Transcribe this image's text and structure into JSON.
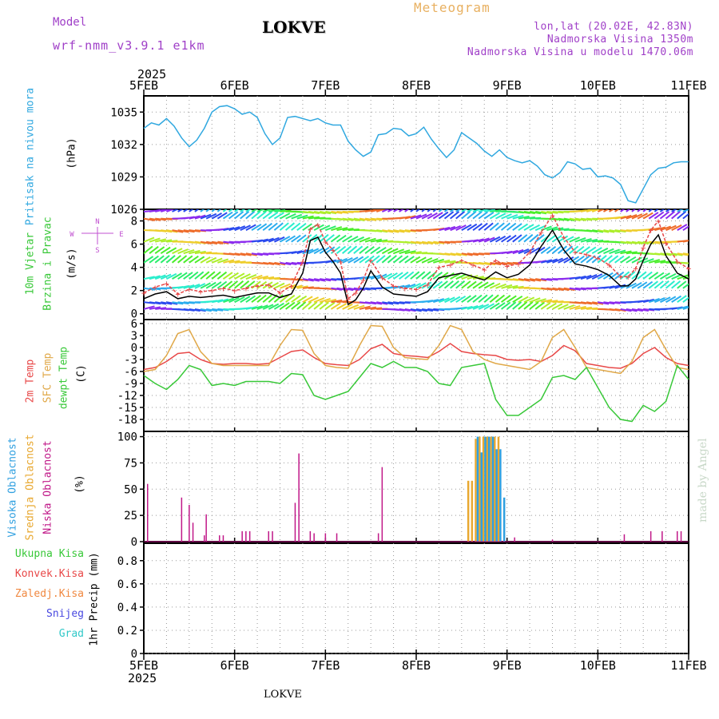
{
  "header": {
    "station": "LOKVE",
    "model_label": "Model",
    "model_name": "wrf-nmm_v3.9.1 e1km",
    "product": "Meteogram",
    "coords": "lon,lat (20.02E, 42.83N)",
    "elevation": "Nadmorska Visina 1350m",
    "model_elevation": "Nadmorska Visina u modelu 1470.06m",
    "year": "2025",
    "footer_station": "LOKVE",
    "credit": "made by Angel"
  },
  "axis_labels": {
    "pressure_title": "Pritisak na nivou mora",
    "pressure_unit": "(hPa)",
    "wind_title_1": "10m Vjetar",
    "wind_title_2": "Brzina i Pravac",
    "wind_unit": "(m/s)",
    "temp_2m": "2m Temp",
    "temp_sfc": "SFC Temp",
    "temp_dewpt": "dewpt Temp",
    "temp_unit": "(C)",
    "cloud_high": "Visoka Oblacnost",
    "cloud_mid": "Srednja Oblacnost",
    "cloud_low": "Niska Oblacnost",
    "cloud_unit": "(%)",
    "precip_total": "Ukupna Kisa",
    "precip_conv": "Konvek.Kisa",
    "precip_frz": "Zaledj.Kisa",
    "precip_snow": "Snijeg",
    "precip_hail": "Grad",
    "precip_unit": "1hr Precip (mm)"
  },
  "colors": {
    "pressure": "#30a8e0",
    "temp_2m": "#e84848",
    "temp_sfc": "#e0a848",
    "dewpt": "#38c838",
    "cloud_high": "#30a0e0",
    "cloud_mid": "#e8a830",
    "cloud_low": "#c01888",
    "wind_speed": "#000000",
    "wind_gust": "#e84848"
  },
  "chart_data": [
    {
      "type": "line",
      "panel": "pressure",
      "title": "Pritisak na nivou mora",
      "ylabel": "(hPa)",
      "x_ticks": [
        "5FEB",
        "6FEB",
        "7FEB",
        "8FEB",
        "9FEB",
        "10FEB",
        "11FEB"
      ],
      "x_range_hours": [
        0,
        144
      ],
      "ylim": [
        1026,
        1036.5
      ],
      "yticks": [
        "1026",
        "1029",
        "1032",
        "1035"
      ],
      "series": [
        {
          "color": "#30a8e0",
          "x": [
            0,
            2,
            4,
            6,
            8,
            10,
            12,
            14,
            16,
            18,
            20,
            22,
            24,
            26,
            28,
            30,
            32,
            34,
            36,
            38,
            40,
            42,
            44,
            46,
            48,
            50,
            52,
            54,
            56,
            58,
            60,
            62,
            64,
            66,
            68,
            70,
            72,
            74,
            76,
            78,
            80,
            82,
            84,
            86,
            88,
            90,
            92,
            94,
            96,
            98,
            100,
            102,
            104,
            106,
            108,
            110,
            112,
            114,
            116,
            118,
            120,
            122,
            124,
            126,
            128,
            130,
            132,
            134,
            136,
            138,
            140,
            142,
            144
          ],
          "y": [
            1033.5,
            1034.0,
            1033.8,
            1034.4,
            1033.7,
            1032.6,
            1031.8,
            1032.4,
            1033.5,
            1035.0,
            1035.5,
            1035.6,
            1035.3,
            1034.8,
            1035.0,
            1034.5,
            1033.0,
            1032.0,
            1032.6,
            1034.5,
            1034.6,
            1034.4,
            1034.2,
            1034.4,
            1034.0,
            1033.8,
            1033.8,
            1032.3,
            1031.5,
            1030.9,
            1031.3,
            1032.9,
            1033.0,
            1033.5,
            1033.4,
            1032.8,
            1033.0,
            1033.6,
            1032.5,
            1031.6,
            1030.8,
            1031.5,
            1033.1,
            1032.6,
            1032.1,
            1031.4,
            1030.9,
            1031.5,
            1030.8,
            1030.5,
            1030.3,
            1030.5,
            1030.0,
            1029.2,
            1028.9,
            1029.4,
            1030.4,
            1030.2,
            1029.7,
            1029.8,
            1029.0,
            1029.1,
            1028.9,
            1028.3,
            1026.8,
            1026.6,
            1027.9,
            1029.2,
            1029.8,
            1029.9,
            1030.3,
            1030.4,
            1030.4
          ]
        }
      ]
    },
    {
      "type": "line",
      "panel": "wind",
      "title": "10m Vjetar Brzina i Pravac",
      "ylabel": "(m/s)",
      "ylim": [
        -0.5,
        9
      ],
      "yticks": [
        "0",
        "2",
        "4",
        "6",
        "8"
      ],
      "direction_legend": [
        "N",
        "E",
        "S",
        "W"
      ],
      "series": [
        {
          "name": "speed",
          "color": "#000000",
          "x": [
            0,
            3,
            6,
            9,
            12,
            15,
            18,
            21,
            24,
            27,
            30,
            33,
            36,
            39,
            42,
            44,
            46,
            48,
            50,
            52,
            54,
            56,
            58,
            60,
            63,
            66,
            69,
            72,
            75,
            78,
            81,
            84,
            87,
            90,
            93,
            96,
            99,
            102,
            105,
            108,
            111,
            114,
            117,
            120,
            123,
            126,
            128,
            130,
            132,
            134,
            136,
            138,
            141,
            144
          ],
          "y": [
            1.3,
            1.7,
            1.9,
            1.3,
            1.5,
            1.4,
            1.5,
            1.6,
            1.4,
            1.6,
            1.8,
            1.8,
            1.4,
            1.7,
            3.5,
            6.3,
            6.6,
            5.3,
            4.5,
            3.5,
            0.8,
            1.2,
            2.2,
            3.7,
            2.3,
            1.7,
            1.6,
            1.5,
            1.9,
            3.1,
            3.3,
            3.5,
            3.2,
            2.9,
            3.6,
            3.1,
            3.4,
            4.2,
            5.8,
            7.2,
            5.5,
            4.3,
            4.1,
            3.8,
            3.3,
            2.4,
            2.4,
            3.0,
            4.6,
            6.0,
            6.8,
            5.0,
            3.5,
            3.0
          ]
        },
        {
          "name": "gust",
          "color": "#e84848",
          "x": [
            0,
            3,
            6,
            9,
            12,
            15,
            18,
            21,
            24,
            27,
            30,
            33,
            36,
            39,
            42,
            44,
            46,
            48,
            50,
            52,
            54,
            56,
            58,
            60,
            63,
            66,
            69,
            72,
            75,
            78,
            81,
            84,
            87,
            90,
            93,
            96,
            99,
            102,
            105,
            108,
            111,
            114,
            117,
            120,
            123,
            126,
            128,
            130,
            132,
            134,
            136,
            138,
            141,
            144
          ],
          "y": [
            1.8,
            2.3,
            2.6,
            1.7,
            2.1,
            1.9,
            2.0,
            2.2,
            2.0,
            2.2,
            2.4,
            2.5,
            1.8,
            2.4,
            4.5,
            7.3,
            7.7,
            6.2,
            5.5,
            4.5,
            1.3,
            1.8,
            2.9,
            4.6,
            3.1,
            2.4,
            2.2,
            2.1,
            2.5,
            4.0,
            4.2,
            4.6,
            4.2,
            3.8,
            4.6,
            4.1,
            4.3,
            5.3,
            7.0,
            8.5,
            6.6,
            5.3,
            5.1,
            4.8,
            4.2,
            3.2,
            3.2,
            3.9,
            5.7,
            7.2,
            8.0,
            6.1,
            4.5,
            3.9
          ]
        }
      ]
    },
    {
      "type": "line",
      "panel": "temperature",
      "title": "2m Temp / SFC Temp / dewpt Temp",
      "ylabel": "(C)",
      "ylim": [
        -21,
        7
      ],
      "yticks": [
        "-18",
        "-15",
        "-12",
        "-9",
        "-6",
        "-3",
        "0",
        "3",
        "6"
      ],
      "series": [
        {
          "name": "2m Temp",
          "color": "#e84848",
          "x": [
            0,
            3,
            6,
            9,
            12,
            15,
            18,
            21,
            24,
            27,
            30,
            33,
            36,
            39,
            42,
            45,
            48,
            51,
            54,
            57,
            60,
            63,
            66,
            69,
            72,
            75,
            78,
            81,
            84,
            87,
            90,
            93,
            96,
            99,
            102,
            105,
            108,
            111,
            114,
            117,
            120,
            123,
            126,
            129,
            132,
            135,
            138,
            141,
            144
          ],
          "y": [
            -5.5,
            -5.0,
            -3.5,
            -1.5,
            -1.2,
            -3.0,
            -4.0,
            -4.2,
            -4.0,
            -4.0,
            -4.2,
            -4.0,
            -2.5,
            -1.0,
            -0.6,
            -2.5,
            -4.0,
            -4.3,
            -4.5,
            -3.0,
            -0.3,
            0.8,
            -1.5,
            -2.0,
            -2.2,
            -2.5,
            -1.0,
            1.0,
            -1.0,
            -1.5,
            -1.8,
            -2.0,
            -3.0,
            -3.2,
            -3.0,
            -3.5,
            -2.0,
            0.5,
            -0.8,
            -4.0,
            -4.5,
            -5.0,
            -5.2,
            -4.0,
            -1.5,
            0.0,
            -2.5,
            -4.0,
            -4.5
          ]
        },
        {
          "name": "SFC Temp",
          "color": "#e0a848",
          "x": [
            0,
            3,
            6,
            9,
            12,
            15,
            18,
            21,
            24,
            27,
            30,
            33,
            36,
            39,
            42,
            45,
            48,
            51,
            54,
            57,
            60,
            63,
            66,
            69,
            72,
            75,
            78,
            81,
            84,
            87,
            90,
            93,
            96,
            99,
            102,
            105,
            108,
            111,
            114,
            117,
            120,
            123,
            126,
            129,
            132,
            135,
            138,
            141,
            144
          ],
          "y": [
            -6.0,
            -5.5,
            -2.0,
            3.5,
            4.5,
            -1.0,
            -4.0,
            -4.5,
            -4.5,
            -4.5,
            -4.5,
            -4.5,
            0.5,
            4.5,
            4.3,
            -1.5,
            -4.5,
            -5.0,
            -5.2,
            0.5,
            5.5,
            5.3,
            0.0,
            -2.5,
            -2.8,
            -3.0,
            0.5,
            5.5,
            4.5,
            -1.0,
            -3.0,
            -4.0,
            -4.5,
            -5.0,
            -5.5,
            -3.5,
            2.5,
            4.5,
            0.0,
            -5.0,
            -5.5,
            -6.0,
            -6.5,
            -3.5,
            2.5,
            4.5,
            -0.5,
            -5.0,
            -5.5
          ]
        },
        {
          "name": "dewpt Temp",
          "color": "#38c838",
          "x": [
            0,
            3,
            6,
            9,
            12,
            15,
            18,
            21,
            24,
            27,
            30,
            33,
            36,
            39,
            42,
            45,
            48,
            51,
            54,
            57,
            60,
            63,
            66,
            69,
            72,
            75,
            78,
            81,
            84,
            87,
            90,
            93,
            96,
            99,
            102,
            105,
            108,
            111,
            114,
            117,
            120,
            123,
            126,
            129,
            132,
            135,
            138,
            141,
            144
          ],
          "y": [
            -7.0,
            -9.0,
            -10.5,
            -8.0,
            -4.5,
            -5.5,
            -9.5,
            -9.0,
            -9.5,
            -8.5,
            -8.5,
            -8.5,
            -9.0,
            -6.5,
            -6.8,
            -12.0,
            -13.0,
            -12.0,
            -11.0,
            -7.5,
            -4.0,
            -5.0,
            -3.5,
            -5.0,
            -5.0,
            -6.0,
            -9.0,
            -9.5,
            -5.0,
            -4.5,
            -4.0,
            -13.0,
            -17.0,
            -17.0,
            -15.0,
            -13.0,
            -7.5,
            -7.0,
            -8.0,
            -5.0,
            -10.0,
            -15.0,
            -18.0,
            -18.5,
            -14.5,
            -16.0,
            -13.5,
            -4.5,
            -8.0
          ]
        }
      ]
    },
    {
      "type": "bar",
      "panel": "cloud",
      "title": "Visoka / Srednja / Niska Oblacnost",
      "ylabel": "(%)",
      "ylim": [
        0,
        105
      ],
      "yticks": [
        "0",
        "25",
        "50",
        "75",
        "100"
      ],
      "series": [
        {
          "name": "Niska Oblacnost",
          "color": "#c01888",
          "x": [
            1,
            10,
            12,
            13,
            16,
            16.5,
            20,
            21,
            26,
            27,
            28,
            33,
            34,
            40,
            41,
            44,
            45,
            48,
            51,
            62,
            63,
            98,
            108,
            127,
            134,
            137,
            141,
            142
          ],
          "values": [
            55,
            42,
            35,
            18,
            6,
            26,
            6,
            6,
            10,
            10,
            10,
            10,
            10,
            37,
            84,
            10,
            8,
            8,
            8,
            8,
            71,
            4,
            2,
            7,
            10,
            10,
            10,
            10
          ]
        },
        {
          "name": "Srednja Oblacnost",
          "color": "#e8a830",
          "x": [
            86,
            87,
            88,
            89,
            90,
            91,
            92,
            93,
            94
          ],
          "values": [
            58,
            58,
            98,
            100,
            100,
            100,
            100,
            100,
            100
          ]
        },
        {
          "name": "Visoka Oblacnost",
          "color": "#30a0e0",
          "x": [
            88,
            89,
            90,
            91,
            92,
            93,
            94,
            95
          ],
          "values": [
            100,
            85,
            100,
            100,
            100,
            88,
            88,
            42
          ]
        }
      ]
    },
    {
      "type": "bar",
      "panel": "precipitation",
      "title": "1hr Precip",
      "ylabel": "1hr Precip (mm)",
      "ylim": [
        0,
        0.95
      ],
      "yticks": [
        "0",
        "0.2",
        "0.4",
        "0.6",
        "0.8"
      ],
      "series": [
        {
          "name": "Ukupna Kisa",
          "color": "#38c838",
          "values": []
        },
        {
          "name": "Konvek.Kisa",
          "color": "#e84848",
          "values": []
        },
        {
          "name": "Zaledj.Kisa",
          "color": "#f08840",
          "values": []
        },
        {
          "name": "Snijeg",
          "color": "#4848e0",
          "values": []
        },
        {
          "name": "Grad",
          "color": "#30c8c8",
          "values": []
        }
      ]
    }
  ]
}
